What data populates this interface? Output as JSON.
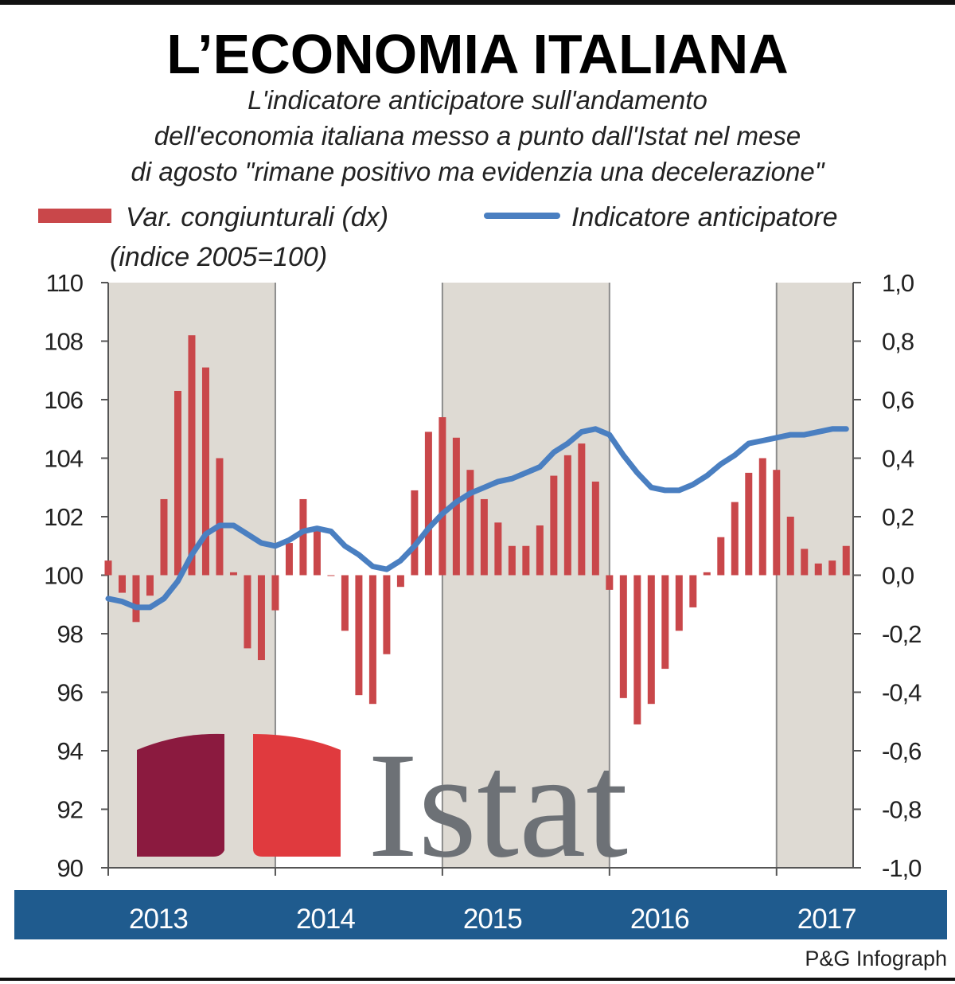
{
  "chart_data": {
    "type": "bar_line",
    "title": "L’ECONOMIA ITALIANA",
    "subtitle": [
      "L'indicatore anticipatore sull'andamento",
      "dell'economia italiana messo a punto dall'Istat nel mese",
      "di agosto \"rimane positivo ma evidenzia una decelerazione\""
    ],
    "note": "(indice 2005=100)",
    "logo": "Istat",
    "source": "P&G Infograph",
    "categories": [
      "2013",
      null,
      null,
      null,
      null,
      null,
      null,
      null,
      null,
      null,
      null,
      null,
      "2014",
      null,
      null,
      null,
      null,
      null,
      null,
      null,
      null,
      null,
      null,
      null,
      "2015",
      null,
      null,
      null,
      null,
      null,
      null,
      null,
      null,
      null,
      null,
      null,
      "2016",
      null,
      null,
      null,
      null,
      null,
      null,
      null,
      null,
      null,
      null,
      null,
      "2017",
      null,
      null,
      null,
      null,
      null
    ],
    "series": [
      {
        "name": "Var. congiunturali (dx)",
        "color": "#c9474a",
        "axis": "y2",
        "type": "bar",
        "values": [
          0.05,
          -0.06,
          -0.16,
          -0.07,
          0.26,
          0.63,
          0.82,
          0.71,
          0.4,
          0.01,
          -0.25,
          -0.29,
          -0.12,
          0.11,
          0.26,
          0.16,
          0.0,
          -0.19,
          -0.41,
          -0.44,
          -0.27,
          -0.04,
          0.29,
          0.49,
          0.54,
          0.47,
          0.36,
          0.26,
          0.18,
          0.1,
          0.1,
          0.17,
          0.34,
          0.41,
          0.45,
          0.32,
          -0.05,
          -0.42,
          -0.51,
          -0.44,
          -0.32,
          -0.19,
          -0.11,
          0.01,
          0.13,
          0.25,
          0.35,
          0.4,
          0.36,
          0.2,
          0.09,
          0.04,
          0.05,
          0.1
        ]
      },
      {
        "name": "Indicatore anticipatore",
        "color": "#4a7fc1",
        "type": "line",
        "values": [
          99.2,
          99.1,
          98.9,
          98.9,
          99.2,
          99.8,
          100.7,
          101.4,
          101.7,
          101.7,
          101.4,
          101.1,
          101.0,
          101.2,
          101.5,
          101.6,
          101.5,
          101.0,
          100.7,
          100.3,
          100.2,
          100.5,
          101.0,
          101.6,
          102.1,
          102.5,
          102.8,
          103.0,
          103.2,
          103.3,
          103.5,
          103.7,
          104.2,
          104.5,
          104.9,
          105.0,
          104.8,
          104.1,
          103.5,
          103.0,
          102.9,
          102.9,
          103.1,
          103.4,
          103.8,
          104.1,
          104.5,
          104.6,
          104.7,
          104.8,
          104.8,
          104.9,
          105.0,
          105.0
        ]
      }
    ],
    "ylim": [
      90,
      110
    ],
    "yticks": [
      90,
      92,
      94,
      96,
      98,
      100,
      102,
      104,
      106,
      108,
      110
    ],
    "y2lim": [
      -1,
      1
    ],
    "y2ticks": [
      {
        "value": -1,
        "label": "-1,0"
      },
      {
        "value": -0.8,
        "label": "-0,8"
      },
      {
        "value": -0.6,
        "label": "-0,6"
      },
      {
        "value": -0.4,
        "label": "-0,4"
      },
      {
        "value": -0.2,
        "label": "-0,2"
      },
      {
        "value": 0,
        "label": "0,0"
      },
      {
        "value": 0.2,
        "label": "0,2"
      },
      {
        "value": 0.4,
        "label": "0,4"
      },
      {
        "value": 0.6,
        "label": "0,6"
      },
      {
        "value": 0.8,
        "label": "0,8"
      },
      {
        "value": 1,
        "label": "1,0"
      }
    ]
  }
}
